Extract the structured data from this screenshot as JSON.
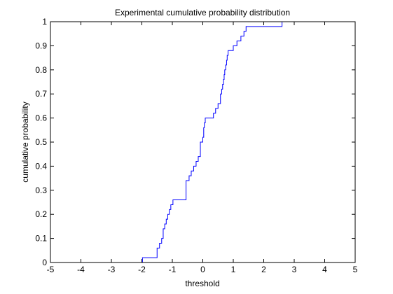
{
  "chart_data": {
    "type": "line",
    "step": true,
    "title": "Experimental cumulative probability distribution",
    "xlabel": "threshold",
    "ylabel": "cumulative probability",
    "xlim": [
      -5,
      5
    ],
    "ylim": [
      0,
      1
    ],
    "xticks": [
      -5,
      -4,
      -3,
      -2,
      -1,
      0,
      1,
      2,
      3,
      4,
      5
    ],
    "yticks": [
      0,
      0.1,
      0.2,
      0.3,
      0.4,
      0.5,
      0.6,
      0.7,
      0.8,
      0.9,
      1
    ],
    "grid": false,
    "series": [
      {
        "name": "empirical CDF",
        "color": "#0000ff",
        "x": [
          -2.02,
          -1.98,
          -1.55,
          -1.5,
          -1.42,
          -1.35,
          -1.3,
          -1.25,
          -1.2,
          -1.15,
          -1.1,
          -1.05,
          -0.98,
          -0.9,
          -0.8,
          -0.7,
          -0.55,
          -0.45,
          -0.38,
          -0.3,
          -0.22,
          -0.15,
          -0.08,
          0.0,
          0.03,
          0.05,
          0.08,
          0.15,
          0.35,
          0.42,
          0.5,
          0.58,
          0.62,
          0.65,
          0.68,
          0.7,
          0.72,
          0.75,
          0.78,
          0.8,
          0.83,
          0.9,
          1.0,
          1.12,
          1.25,
          1.35,
          1.42,
          1.55,
          2.6
        ],
        "y": [
          0,
          0.02,
          0.02,
          0.06,
          0.08,
          0.1,
          0.14,
          0.16,
          0.18,
          0.2,
          0.22,
          0.24,
          0.26,
          0.26,
          0.26,
          0.26,
          0.34,
          0.36,
          0.38,
          0.4,
          0.42,
          0.44,
          0.5,
          0.52,
          0.56,
          0.58,
          0.6,
          0.6,
          0.62,
          0.64,
          0.66,
          0.7,
          0.72,
          0.74,
          0.76,
          0.78,
          0.8,
          0.82,
          0.84,
          0.86,
          0.88,
          0.88,
          0.9,
          0.92,
          0.94,
          0.96,
          0.98,
          0.98,
          1.0
        ]
      }
    ]
  }
}
